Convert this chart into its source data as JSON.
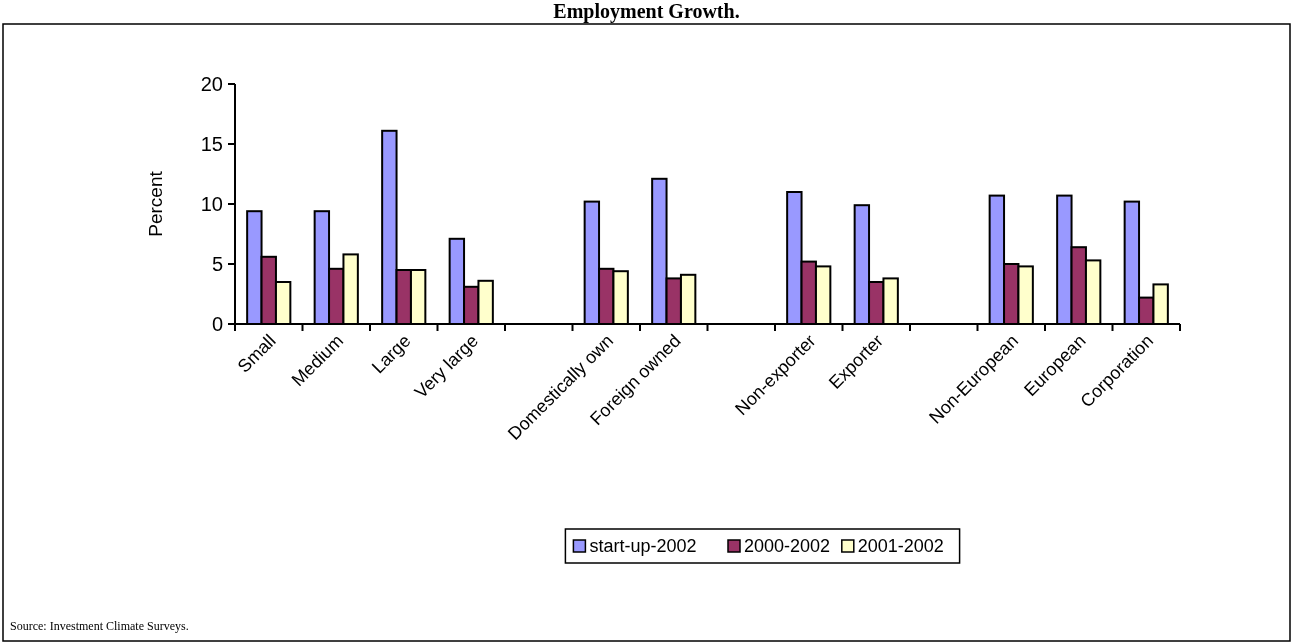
{
  "chart_data": {
    "type": "bar",
    "title": "Employment Growth.",
    "ylabel": "Percent",
    "categories": [
      "Small",
      "Medium",
      "Large",
      "Very large",
      null,
      "Domestically own",
      "Foreign owned",
      null,
      "Non-exporter",
      "Exporter",
      null,
      "Non-European",
      "European",
      "Corporation"
    ],
    "series": [
      {
        "name": "start-up-2002",
        "color": "#9999ff",
        "values": [
          9.4,
          9.4,
          16.1,
          7.1,
          null,
          10.2,
          12.1,
          null,
          11.0,
          9.9,
          null,
          10.7,
          10.7,
          10.2
        ]
      },
      {
        "name": "2000-2002",
        "color": "#993366",
        "values": [
          5.6,
          4.6,
          4.5,
          3.1,
          null,
          4.6,
          3.8,
          null,
          5.2,
          3.5,
          null,
          5.0,
          6.4,
          2.2
        ]
      },
      {
        "name": "2001-2002",
        "color": "#ffffcc",
        "values": [
          3.5,
          5.8,
          4.5,
          3.6,
          null,
          4.4,
          4.1,
          null,
          4.8,
          3.8,
          null,
          4.8,
          5.3,
          3.3
        ]
      }
    ],
    "ylim": [
      0,
      20
    ],
    "yticks": [
      0,
      5,
      10,
      15,
      20
    ],
    "grid": false,
    "legend": "bottom",
    "annotations": [
      "Source: Investment Climate Surveys."
    ]
  }
}
